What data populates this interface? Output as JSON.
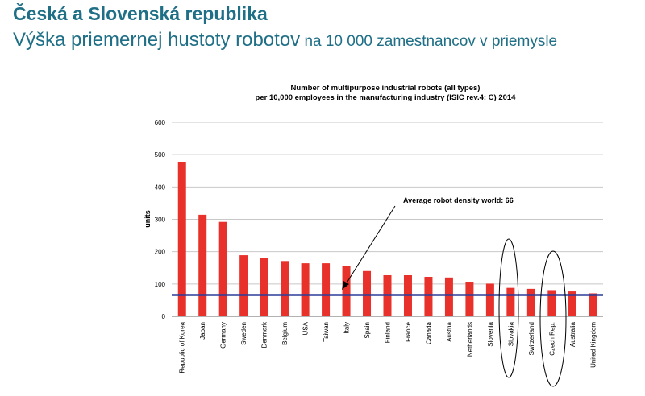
{
  "slide": {
    "title": "Česká a Slovenská republika",
    "subtitle_main": "Výška priemernej hustoty robotov",
    "subtitle_rest": " na 10 000 zamestnancov v priemysle"
  },
  "chart_data": {
    "type": "bar",
    "title_line1": "Number of multipurpose industrial robots (all types)",
    "title_line2": "per 10,000 employees in the manufacturing industry (ISIC rev.4: C) 2014",
    "ylabel": "units",
    "xlabel": "",
    "ylim": [
      0,
      600
    ],
    "yticks": [
      0,
      100,
      200,
      300,
      400,
      500,
      600
    ],
    "grid": true,
    "bar_color": "#e8312a",
    "categories": [
      "Republic of Korea",
      "Japan",
      "Germany",
      "Sweden",
      "Denmark",
      "Belgium",
      "USA",
      "Taiwan",
      "Italy",
      "Spain",
      "Finland",
      "France",
      "Canada",
      "Austria",
      "Netherlands",
      "Slovenia",
      "Slovakia",
      "Switzerland",
      "Czech Rep.",
      "Australia",
      "United Kingdom"
    ],
    "values": [
      478,
      314,
      292,
      189,
      180,
      171,
      164,
      164,
      155,
      140,
      127,
      127,
      122,
      120,
      107,
      101,
      88,
      85,
      81,
      77,
      71
    ],
    "reference_line": {
      "value": 66,
      "color": "#2b3d99",
      "label": "Average robot density world: 66"
    },
    "highlighted": [
      "Slovakia",
      "Czech Rep."
    ]
  }
}
